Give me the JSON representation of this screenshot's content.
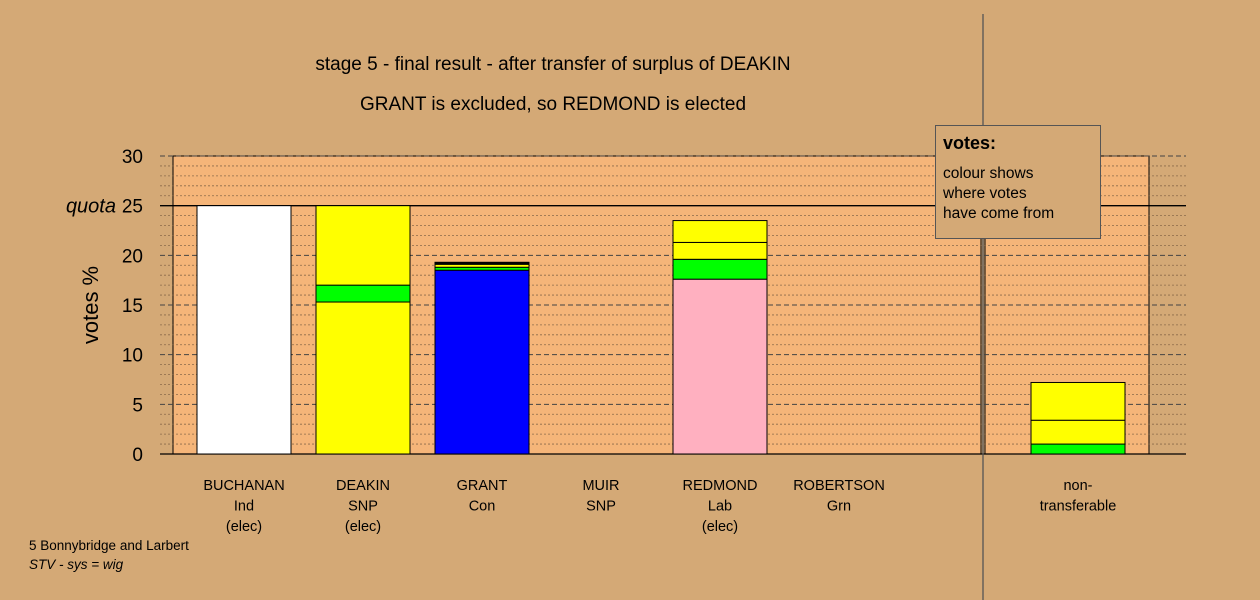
{
  "titles": {
    "line1": "stage 5 - final result - after transfer of surplus of DEAKIN",
    "line2": "GRANT is excluded, so REDMOND is elected"
  },
  "legend": {
    "title": "votes:",
    "body": "colour shows\nwhere votes\nhave come from"
  },
  "footer": {
    "line1": "5 Bonnybridge and Larbert",
    "line2": "STV - sys = wig"
  },
  "colors": {
    "background": "#d4a976",
    "plot_area": "#f5b579",
    "white": "#ffffff",
    "yellow": "#ffff00",
    "green": "#00ff00",
    "blue": "#0000ff",
    "pink": "#ffb0c0"
  },
  "chart_data": {
    "type": "bar",
    "stacked": true,
    "ylabel": "votes %",
    "ylim": [
      0,
      30
    ],
    "yticks": [
      "0",
      "5",
      "10",
      "15",
      "20",
      "25",
      "30"
    ],
    "quota_label": "quota",
    "quota": 25,
    "grid": true,
    "categories": [
      {
        "label": [
          "BUCHANAN",
          "Ind",
          "(elec)"
        ],
        "segments": [
          {
            "color": "white",
            "value": 25.0
          }
        ]
      },
      {
        "label": [
          "DEAKIN",
          "SNP",
          "(elec)"
        ],
        "segments": [
          {
            "color": "yellow",
            "value": 15.3
          },
          {
            "color": "green",
            "value": 1.7
          },
          {
            "color": "yellow",
            "value": 8.0
          }
        ]
      },
      {
        "label": [
          "GRANT",
          "Con",
          ""
        ],
        "segments": [
          {
            "color": "blue",
            "value": 18.5
          },
          {
            "color": "green",
            "value": 0.3
          },
          {
            "color": "yellow",
            "value": 0.3
          },
          {
            "color": "green",
            "value": 0.1
          },
          {
            "color": "yellow",
            "value": 0.1
          }
        ]
      },
      {
        "label": [
          "MUIR",
          "SNP",
          ""
        ],
        "segments": []
      },
      {
        "label": [
          "REDMOND",
          "Lab",
          "(elec)"
        ],
        "segments": [
          {
            "color": "pink",
            "value": 17.6
          },
          {
            "color": "green",
            "value": 2.0
          },
          {
            "color": "yellow",
            "value": 1.7
          },
          {
            "color": "yellow",
            "value": 2.2
          }
        ]
      },
      {
        "label": [
          "ROBERTSON",
          "Grn",
          ""
        ],
        "segments": []
      }
    ],
    "nontransferable": {
      "label": [
        "non-",
        "transferable"
      ],
      "segments": [
        {
          "color": "green",
          "value": 1.0
        },
        {
          "color": "yellow",
          "value": 2.4
        },
        {
          "color": "yellow",
          "value": 3.8
        }
      ]
    }
  }
}
